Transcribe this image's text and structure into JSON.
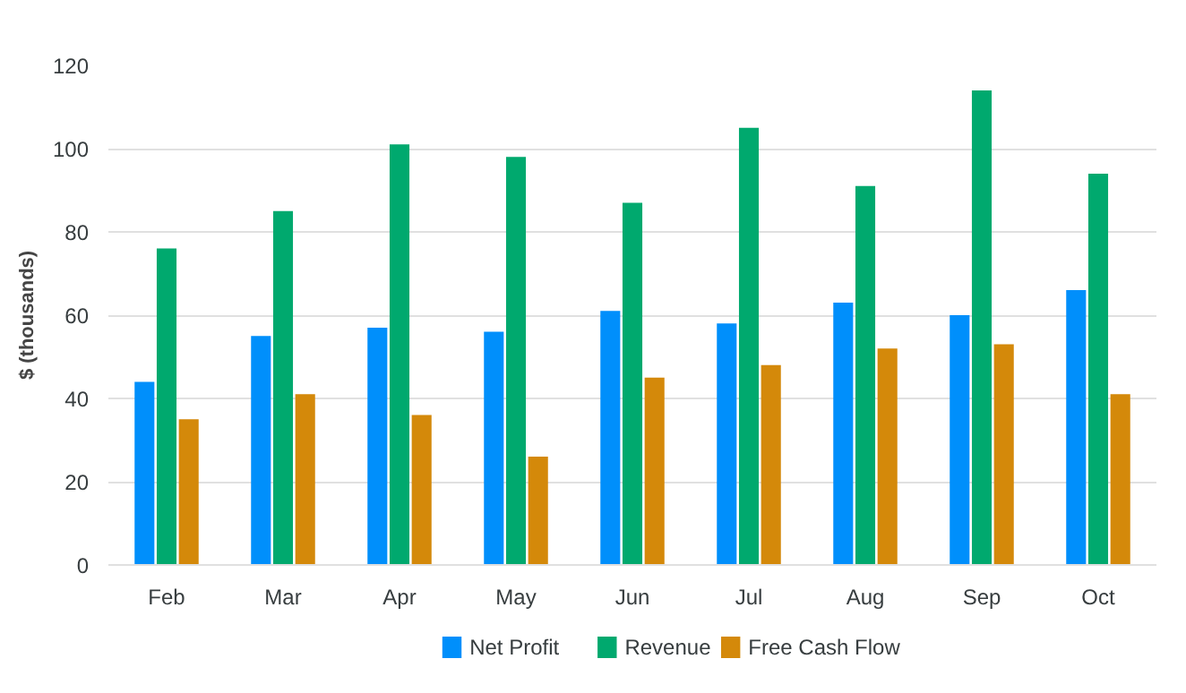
{
  "chart_data": {
    "type": "bar",
    "ylabel": "$ (thousands)",
    "categories": [
      "Feb",
      "Mar",
      "Apr",
      "May",
      "Jun",
      "Jul",
      "Aug",
      "Sep",
      "Oct"
    ],
    "series": [
      {
        "name": "Net Profit",
        "color": "#008ffb",
        "values": [
          44,
          55,
          57,
          56,
          61,
          58,
          63,
          60,
          66
        ]
      },
      {
        "name": "Revenue",
        "color": "#00a96e",
        "values": [
          76,
          85,
          101,
          98,
          87,
          105,
          91,
          114,
          94
        ]
      },
      {
        "name": "Free Cash Flow",
        "color": "#d4890a",
        "values": [
          35,
          41,
          36,
          26,
          45,
          48,
          52,
          53,
          41
        ]
      }
    ],
    "ylim": [
      0,
      120
    ],
    "yticks": [
      0,
      20,
      40,
      60,
      80,
      100,
      120
    ],
    "grid": "y",
    "legend": "bottom"
  }
}
